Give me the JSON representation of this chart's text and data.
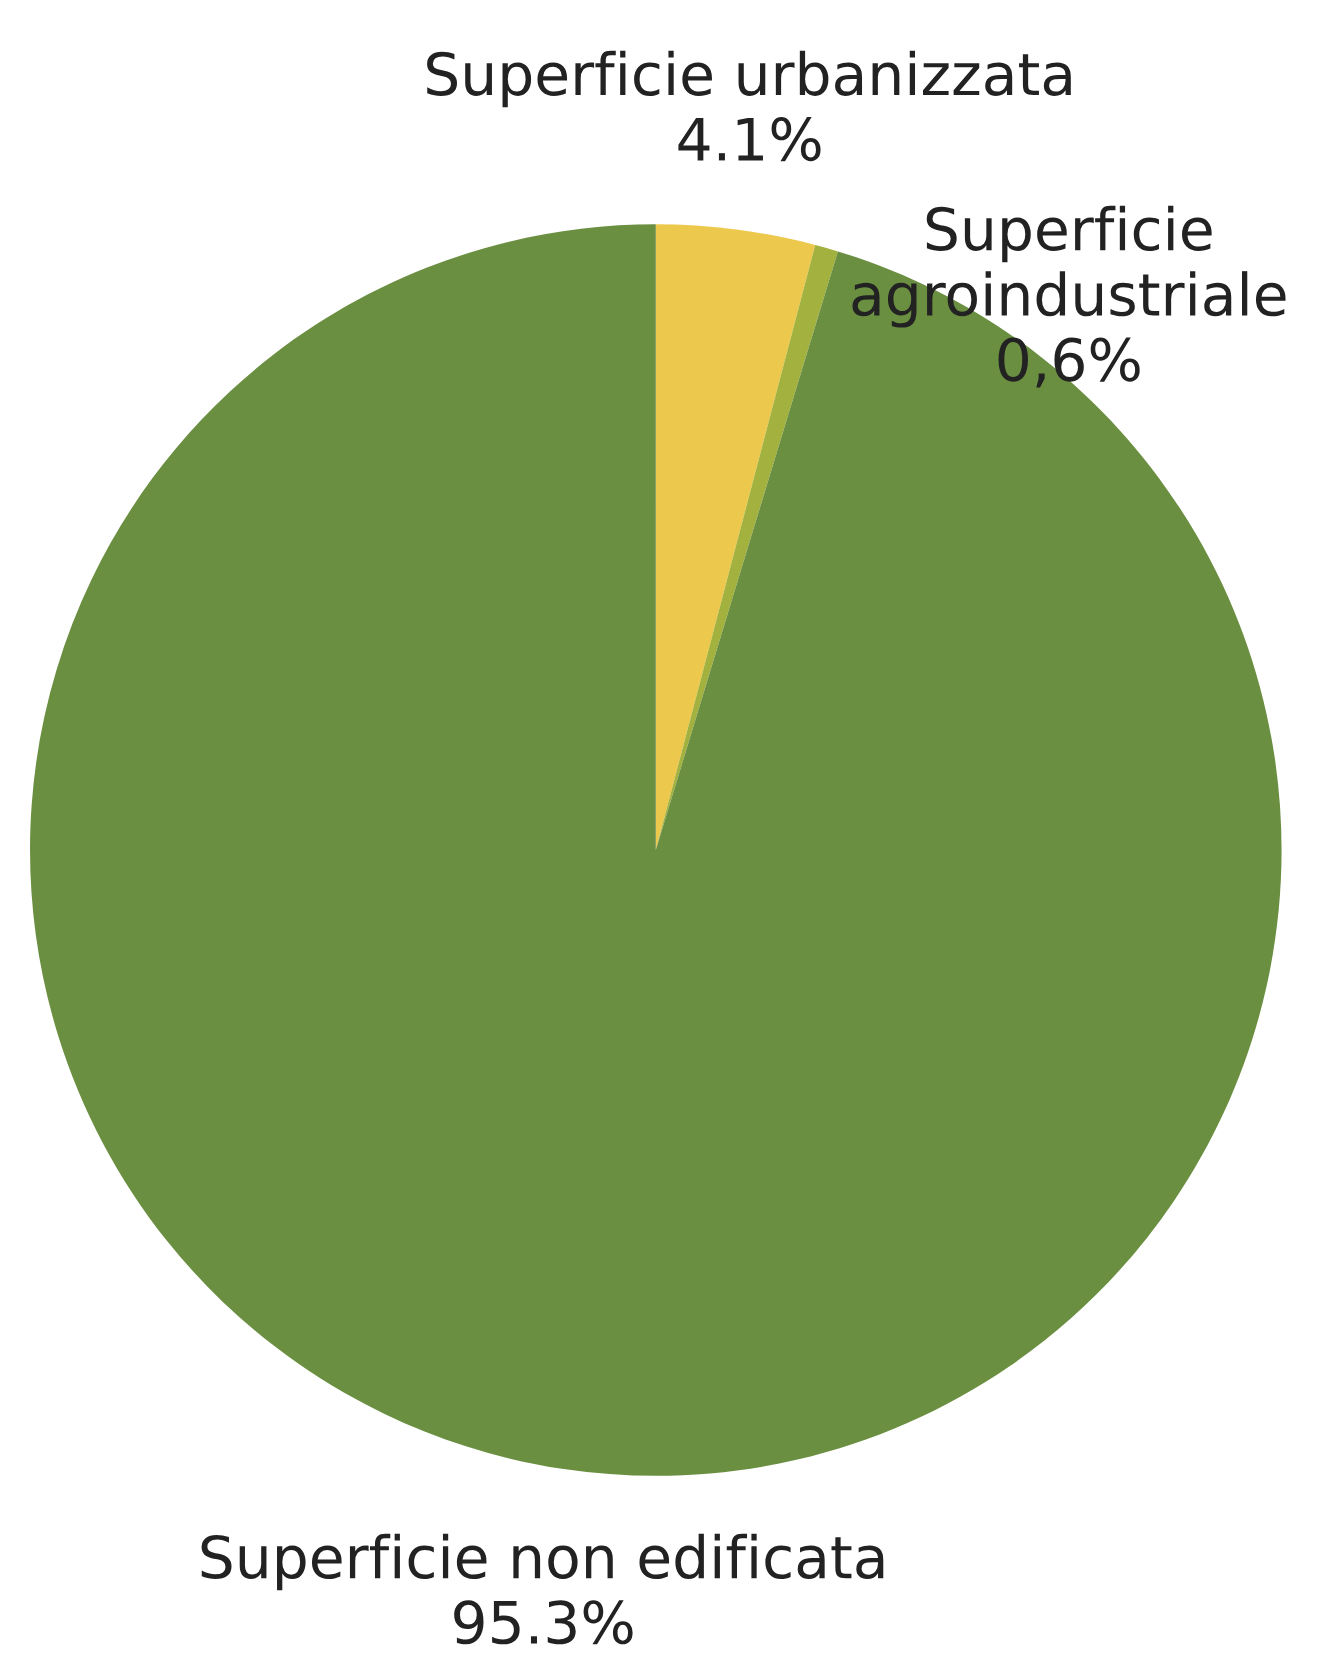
{
  "chart_data": {
    "type": "pie",
    "categories": [
      "Superficie urbanizzata",
      "Superficie agroindustriale",
      "Superficie non edificata"
    ],
    "values": [
      4.1,
      0.6,
      95.3
    ],
    "value_labels": [
      "4.1%",
      "0,6%",
      "95.3%"
    ],
    "colors": [
      "#ecc94d",
      "#a3b23f",
      "#6b8f41"
    ],
    "legend": false
  }
}
